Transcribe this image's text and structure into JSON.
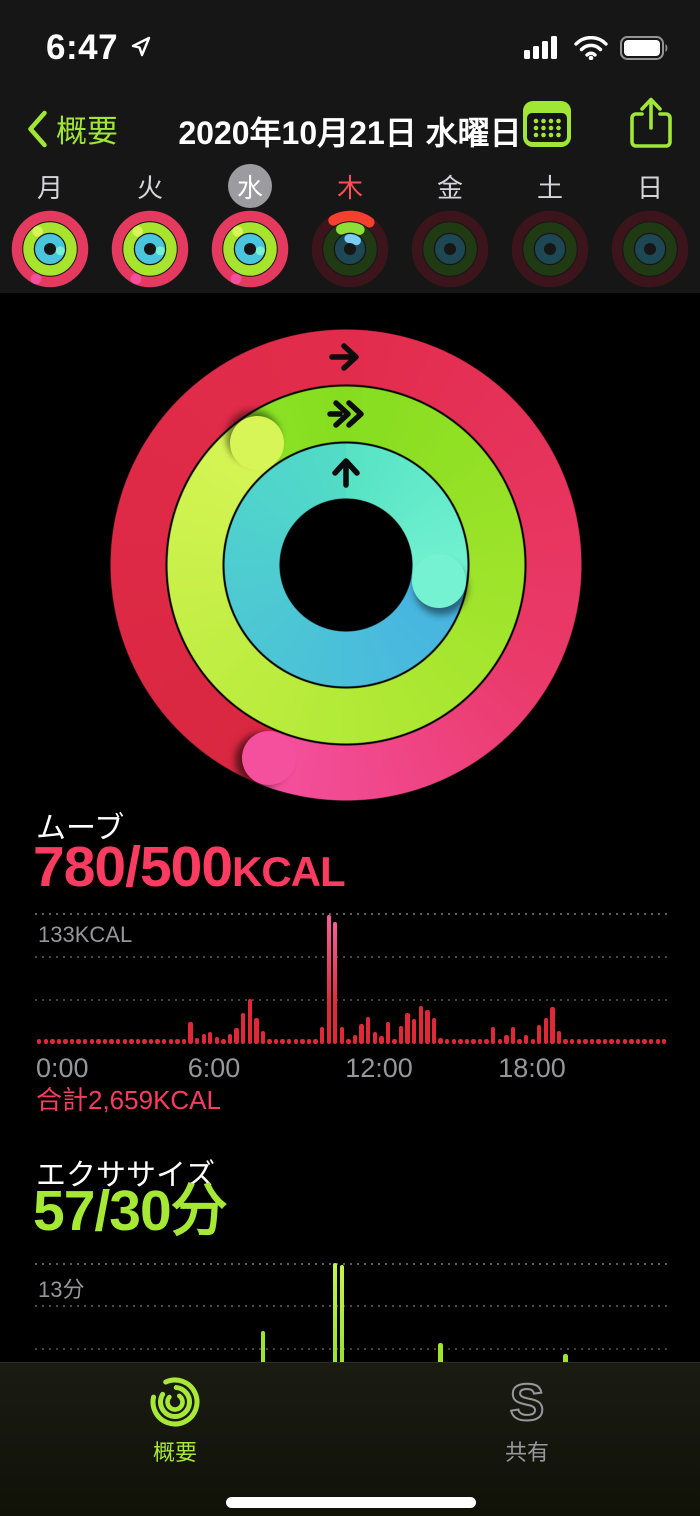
{
  "status_bar": {
    "time": "6:47"
  },
  "nav": {
    "back_label": "概要",
    "title": "2020年10月21日 水曜日"
  },
  "week": {
    "days": [
      {
        "label": "月",
        "state": "complete",
        "selected": false,
        "today": false
      },
      {
        "label": "火",
        "state": "complete",
        "selected": false,
        "today": false
      },
      {
        "label": "水",
        "state": "complete",
        "selected": true,
        "today": false
      },
      {
        "label": "木",
        "state": "partial",
        "selected": false,
        "today": true
      },
      {
        "label": "金",
        "state": "empty",
        "selected": false,
        "today": false
      },
      {
        "label": "土",
        "state": "empty",
        "selected": false,
        "today": false
      },
      {
        "label": "日",
        "state": "empty",
        "selected": false,
        "today": false
      }
    ]
  },
  "rings": {
    "move_percent": 156,
    "exercise_percent": 190,
    "stand_arc_degrees": 100
  },
  "move_section": {
    "title": "ムーブ",
    "value": "780/500",
    "unit": "KCAL",
    "y_max_label": "133KCAL",
    "total_label": "合計2,659KCAL",
    "x_ticks": [
      "0:00",
      "6:00",
      "12:00",
      "18:00"
    ]
  },
  "exercise_section": {
    "title": "エクササイズ",
    "value": "57/30",
    "unit": "分",
    "y_max_label": "13分"
  },
  "tab_bar": {
    "tabs": [
      {
        "id": "summary",
        "label": "概要",
        "active": true
      },
      {
        "id": "sharing",
        "label": "共有",
        "active": false
      }
    ]
  },
  "colors": {
    "accent_green": "#9fe636",
    "text_green": "#a6e934",
    "text_red": "#fb3b5f",
    "bar_red": "#e02837",
    "bar_red_hot": "#f75e9e",
    "bar_green": "#9fe32b",
    "bar_green_hot": "#c9f24c",
    "gray_label": "#96969b",
    "ring_move_start": "#e22c4c",
    "ring_move_mid": "#ea3a6a",
    "ring_move_cap": "#f4509e",
    "ring_move_base": "#d92740",
    "ring_ex_start": "#86dd1f",
    "ring_ex_mid": "#aee833",
    "ring_ex_cap": "#d7f556",
    "ring_ex_base": "#8ce226",
    "ring_stand_start": "#55e3c4",
    "ring_stand_cap": "#74f2d1",
    "ring_stand_base_start": "#47b2e2",
    "ring_stand_base_end": "#52dcc6",
    "mini_move": "#e43a5f",
    "mini_ex": "#a6e42d",
    "mini_stand": "#49c5dd",
    "dim_move": "#3c141b",
    "dim_ex": "#203a13",
    "dim_stand": "#1d4752",
    "arc_move": "#f5402f",
    "arc_ex": "#8ede38",
    "arc_stand": "#79ccf2",
    "selected_day_bg": "#9b9ba0",
    "today_red": "#fd4f57"
  },
  "chart_data": [
    {
      "type": "bar",
      "title": "ムーブ per 15 min",
      "ylabel": "KCAL",
      "ymax": 133,
      "interval_minutes": 15,
      "x_ticks": [
        "0:00",
        "6:00",
        "12:00",
        "18:00"
      ],
      "total": "2,659 KCAL",
      "grid": "dotted",
      "values": [
        4,
        4,
        4,
        4,
        4,
        4,
        4,
        4,
        4,
        4,
        4,
        4,
        4,
        4,
        4,
        4,
        4,
        4,
        4,
        4,
        4,
        4,
        4,
        22,
        6,
        10,
        12,
        7,
        5,
        10,
        16,
        31,
        46,
        26,
        13,
        5,
        4,
        4,
        4,
        4,
        4,
        4,
        4,
        17,
        131,
        124,
        17,
        5,
        9,
        20,
        27,
        12,
        8,
        22,
        5,
        18,
        31,
        25,
        39,
        35,
        26,
        6,
        4,
        4,
        4,
        4,
        4,
        4,
        4,
        17,
        4,
        9,
        17,
        4,
        9,
        4,
        19,
        26,
        38,
        13,
        4,
        4,
        4,
        4,
        4,
        4,
        4,
        4,
        4,
        4,
        4,
        4,
        4,
        4,
        4,
        4
      ]
    },
    {
      "type": "bar",
      "title": "エクササイズ per 15 min",
      "ylabel": "分",
      "ymax": 13,
      "interval_minutes": 15,
      "grid": "dotted",
      "values": [
        0,
        0,
        0,
        0,
        0,
        0,
        0,
        0,
        0,
        0,
        0,
        0,
        0,
        0,
        0,
        0,
        0,
        0,
        0,
        0,
        0,
        0,
        0,
        0,
        0,
        0,
        0,
        0,
        0,
        0,
        0,
        0,
        0,
        0,
        6,
        0,
        0,
        0,
        0,
        0,
        0,
        0,
        0,
        0,
        0,
        13,
        12.8,
        0,
        0,
        0,
        0,
        0,
        0,
        0,
        0,
        0,
        0,
        0,
        0,
        0,
        0,
        4.8,
        0,
        0,
        0,
        0,
        0,
        0,
        0,
        0,
        0,
        0,
        0,
        0,
        0,
        0,
        0,
        0,
        0,
        0,
        3.7,
        0,
        0,
        0,
        0,
        0,
        0,
        0,
        0,
        0,
        0,
        0,
        0,
        0,
        0,
        0
      ]
    }
  ]
}
